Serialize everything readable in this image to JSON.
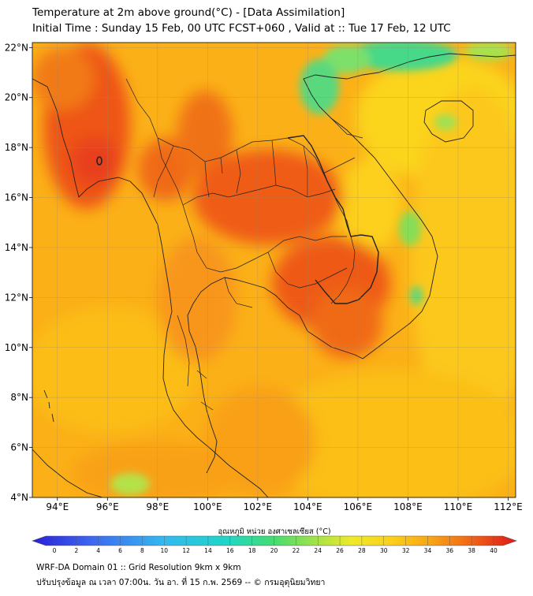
{
  "header": {
    "title": "Temperature at 2m above ground(°C) - [Data Assimilation]",
    "subtitle": "Initial Time : Sunday 15 Feb, 00 UTC FCST+060 , Valid at :: Tue 17 Feb, 12 UTC"
  },
  "map": {
    "lat_labels": [
      "22°N",
      "20°N",
      "18°N",
      "16°N",
      "14°N",
      "12°N",
      "10°N",
      "8°N",
      "6°N",
      "4°N"
    ],
    "lon_labels": [
      "94°E",
      "96°E",
      "98°E",
      "100°E",
      "102°E",
      "104°E",
      "106°E",
      "108°E",
      "110°E",
      "112°E"
    ],
    "extent": {
      "lon": [
        93,
        112.3
      ],
      "lat": [
        4,
        22.2
      ]
    }
  },
  "colorbar": {
    "label": "อุณหภูมิ หน่วย องศาเซลเซียส (°C)",
    "ticks": [
      "0",
      "2",
      "4",
      "6",
      "8",
      "10",
      "12",
      "14",
      "16",
      "18",
      "20",
      "22",
      "24",
      "26",
      "28",
      "30",
      "32",
      "34",
      "36",
      "38",
      "40"
    ],
    "range": [
      0,
      40
    ]
  },
  "footer": {
    "line1": "WRF-DA Domain 01 :: Grid Resolution 9km x 9km",
    "line2": "ปรับปรุงข้อมูล ณ เวลา 07:00น. วัน อา. ที่ 15 ก.พ. 2569 -- © กรมอุตุนิยมวิทยา"
  },
  "colors": {
    "hot": "#ea4418",
    "warm": "#f88a14",
    "mild": "#fbb614",
    "cool": "#fbd21a",
    "cold": "#3dd58b",
    "border": "#222222"
  }
}
